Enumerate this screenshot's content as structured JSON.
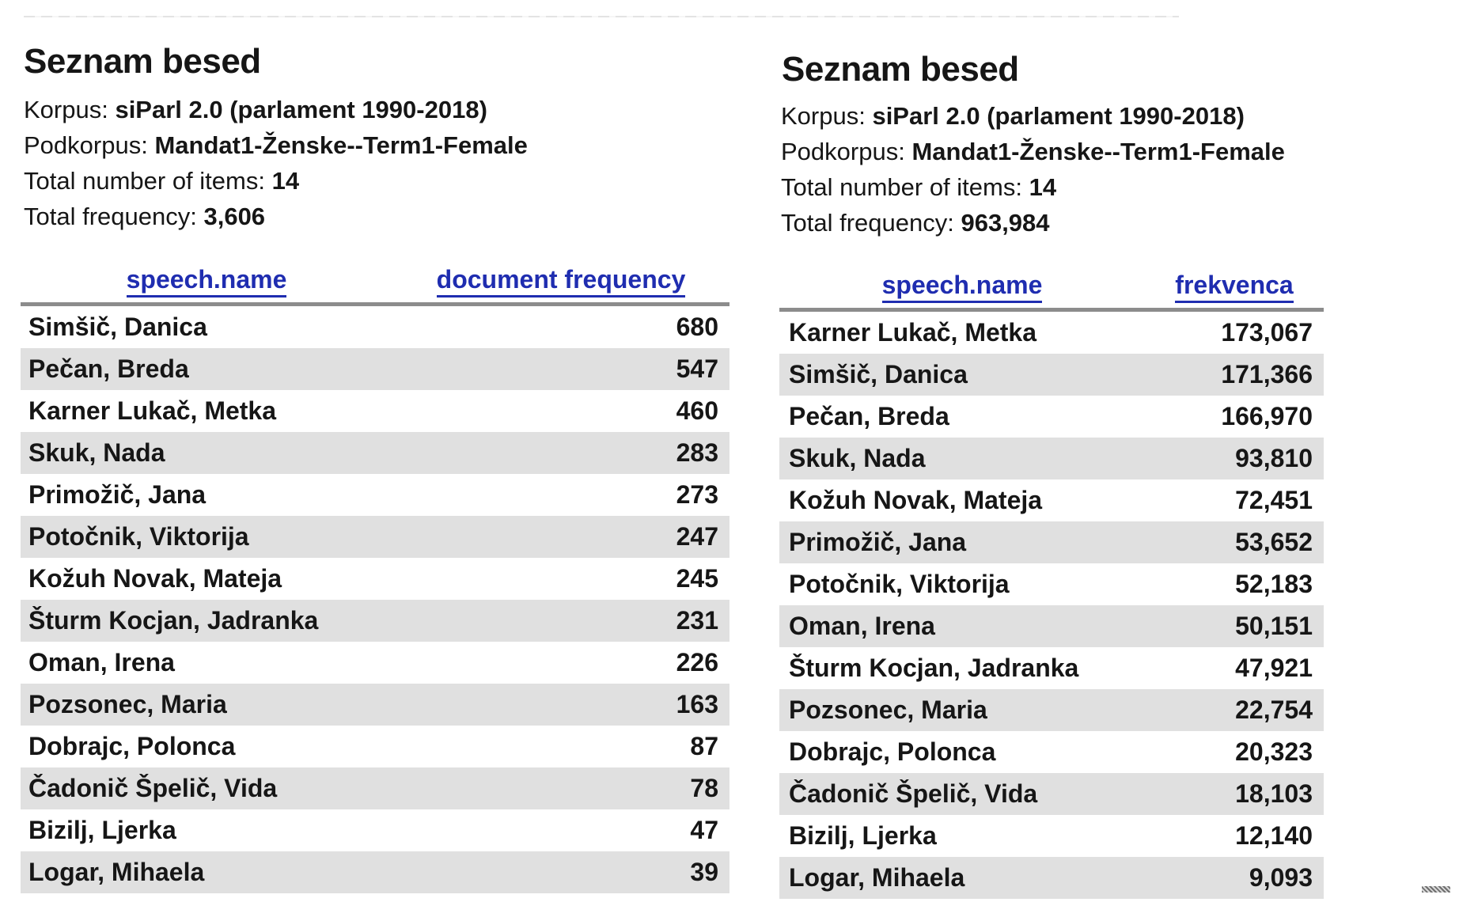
{
  "colors": {
    "ink": "#161616",
    "link": "#1f2db0",
    "alt": "#e0e0e0",
    "rule": "#8c8c8c"
  },
  "panels": [
    {
      "title": "Seznam besed",
      "meta": [
        {
          "label": "Korpus: ",
          "value": "siParl 2.0 (parlament 1990-2018)"
        },
        {
          "label": "Podkorpus: ",
          "value": "Mandat1-Ženske--Term1-Female"
        },
        {
          "label": "Total number of items: ",
          "value": "14"
        },
        {
          "label": "Total frequency: ",
          "value": "3,606"
        }
      ],
      "table": {
        "columns": [
          "speech.name",
          "document frequency"
        ],
        "rows": [
          {
            "name": "Simšič, Danica",
            "value": "680"
          },
          {
            "name": "Pečan, Breda",
            "value": "547"
          },
          {
            "name": "Karner Lukač, Metka",
            "value": "460"
          },
          {
            "name": "Skuk, Nada",
            "value": "283"
          },
          {
            "name": "Primožič, Jana",
            "value": "273"
          },
          {
            "name": "Potočnik, Viktorija",
            "value": "247"
          },
          {
            "name": "Kožuh Novak, Mateja",
            "value": "245"
          },
          {
            "name": "Šturm Kocjan, Jadranka",
            "value": "231"
          },
          {
            "name": "Oman, Irena",
            "value": "226"
          },
          {
            "name": "Pozsonec, Maria",
            "value": "163"
          },
          {
            "name": "Dobrajc, Polonca",
            "value": "87"
          },
          {
            "name": "Čadonič Špelič, Vida",
            "value": "78"
          },
          {
            "name": "Bizilj, Ljerka",
            "value": "47"
          },
          {
            "name": "Logar, Mihaela",
            "value": "39"
          }
        ]
      }
    },
    {
      "title": "Seznam besed",
      "meta": [
        {
          "label": "Korpus: ",
          "value": "siParl 2.0 (parlament 1990-2018)"
        },
        {
          "label": "Podkorpus: ",
          "value": "Mandat1-Ženske--Term1-Female"
        },
        {
          "label": "Total number of items: ",
          "value": "14"
        },
        {
          "label": "Total frequency: ",
          "value": "963,984"
        }
      ],
      "table": {
        "columns": [
          "speech.name",
          "frekvenca"
        ],
        "rows": [
          {
            "name": "Karner Lukač, Metka",
            "value": "173,067"
          },
          {
            "name": "Simšič, Danica",
            "value": "171,366"
          },
          {
            "name": "Pečan, Breda",
            "value": "166,970"
          },
          {
            "name": "Skuk, Nada",
            "value": "93,810"
          },
          {
            "name": "Kožuh Novak, Mateja",
            "value": "72,451"
          },
          {
            "name": "Primožič, Jana",
            "value": "53,652"
          },
          {
            "name": "Potočnik, Viktorija",
            "value": "52,183"
          },
          {
            "name": "Oman, Irena",
            "value": "50,151"
          },
          {
            "name": "Šturm Kocjan, Jadranka",
            "value": "47,921"
          },
          {
            "name": "Pozsonec, Maria",
            "value": "22,754"
          },
          {
            "name": "Dobrajc, Polonca",
            "value": "20,323"
          },
          {
            "name": "Čadonič Špelič, Vida",
            "value": "18,103"
          },
          {
            "name": "Bizilj, Ljerka",
            "value": "12,140"
          },
          {
            "name": "Logar, Mihaela",
            "value": "9,093"
          }
        ]
      }
    }
  ]
}
